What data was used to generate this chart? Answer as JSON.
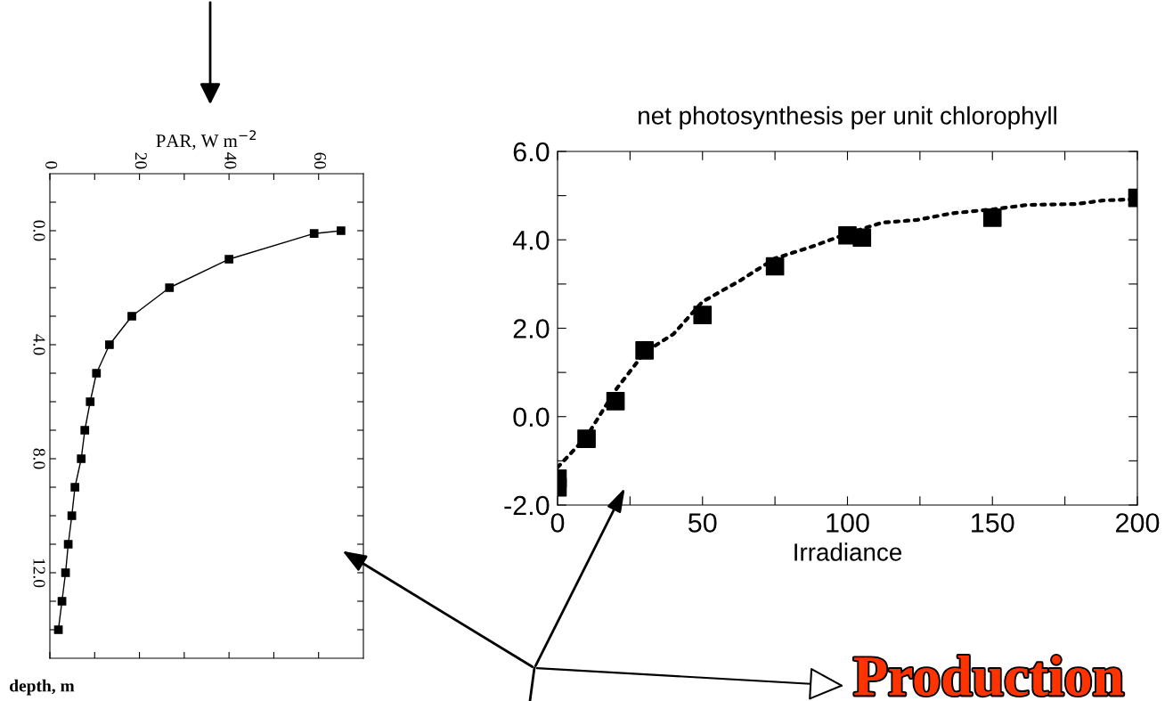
{
  "chart_data": [
    {
      "type": "line",
      "xlabel": "PAR, W m$^{−2}$",
      "ylabel": "depth, m",
      "series": [
        {
          "color": "#000000",
          "x": [
            65.0,
            59.0,
            40.0,
            26.7,
            18.3,
            13.3,
            10.4,
            9.0,
            7.8,
            7.0,
            5.6,
            4.9,
            4.1,
            3.5,
            2.7,
            1.9
          ],
          "values": [
            0,
            0.1,
            1,
            2,
            3,
            4,
            5,
            6,
            7,
            8,
            9,
            10,
            11,
            12,
            13,
            14
          ]
        }
      ],
      "marker": "square",
      "line_style": "solid",
      "grid": false,
      "legend": false,
      "xlim": [
        0,
        70
      ],
      "xticks": [
        0,
        {
          "value": 10,
          "label": null
        },
        20,
        {
          "value": 30,
          "label": null
        },
        40,
        {
          "value": 50,
          "label": null
        },
        60
      ],
      "ylim": [
        15,
        -2
      ],
      "yticks": [
        {
          "value": -1,
          "label": null
        },
        {
          "value": 0,
          "label": "0.0"
        },
        {
          "value": 1,
          "label": null
        },
        {
          "value": 2,
          "label": null
        },
        {
          "value": 3,
          "label": null
        },
        {
          "value": 4,
          "label": "4.0"
        },
        {
          "value": 5,
          "label": null
        },
        {
          "value": 6,
          "label": null
        },
        {
          "value": 7,
          "label": null
        },
        {
          "value": 8,
          "label": "8.0"
        },
        {
          "value": 9,
          "label": null
        },
        {
          "value": 10,
          "label": null
        },
        {
          "value": 11,
          "label": null
        },
        {
          "value": 12,
          "label": "12.0"
        },
        {
          "value": 13,
          "label": null
        },
        {
          "value": 14,
          "label": null
        }
      ]
    },
    {
      "type": "scatter",
      "title": "net photosynthesis per unit chlorophyll",
      "xlabel": "Irradiance",
      "series": [
        {
          "type": "scatter",
          "marker": "square",
          "color": "#000000",
          "x": [
            0,
            0,
            10,
            20,
            30,
            50,
            75,
            100,
            105,
            150,
            200
          ],
          "values": [
            -1.4,
            -1.6,
            -0.5,
            0.35,
            1.5,
            2.3,
            3.4,
            4.1,
            4.05,
            4.5,
            4.95
          ]
        },
        {
          "type": "line",
          "line_style": "dotted",
          "marker": "none",
          "color": "#000000",
          "x": [
            0,
            10,
            20,
            30,
            40,
            50,
            63,
            75,
            87,
            100,
            112,
            124,
            136,
            150,
            162,
            179,
            188,
            200
          ],
          "values": [
            -1.15,
            -0.45,
            0.6,
            1.45,
            1.87,
            2.6,
            3.08,
            3.58,
            3.83,
            4.14,
            4.39,
            4.45,
            4.6,
            4.69,
            4.79,
            4.81,
            4.89,
            4.92
          ]
        }
      ],
      "grid": false,
      "legend": false,
      "xlim": [
        0,
        200
      ],
      "xticks": [
        0,
        {
          "value": 25,
          "label": null
        },
        50,
        {
          "value": 75,
          "label": null
        },
        100,
        {
          "value": 125,
          "label": null
        },
        150,
        {
          "value": 175,
          "label": null
        },
        200
      ],
      "ylim": [
        -2,
        6
      ],
      "yticks": [
        {
          "value": -2,
          "label": "-2.0"
        },
        {
          "value": -1,
          "label": null
        },
        {
          "value": 0,
          "label": "0.0"
        },
        {
          "value": 1,
          "label": null
        },
        {
          "value": 2,
          "label": "2.0"
        },
        {
          "value": 3,
          "label": null
        },
        {
          "value": 4,
          "label": "4.0"
        },
        {
          "value": 5,
          "label": null
        },
        {
          "value": 6,
          "label": "6.0"
        }
      ],
      "annotations": [
        "Production"
      ]
    }
  ]
}
